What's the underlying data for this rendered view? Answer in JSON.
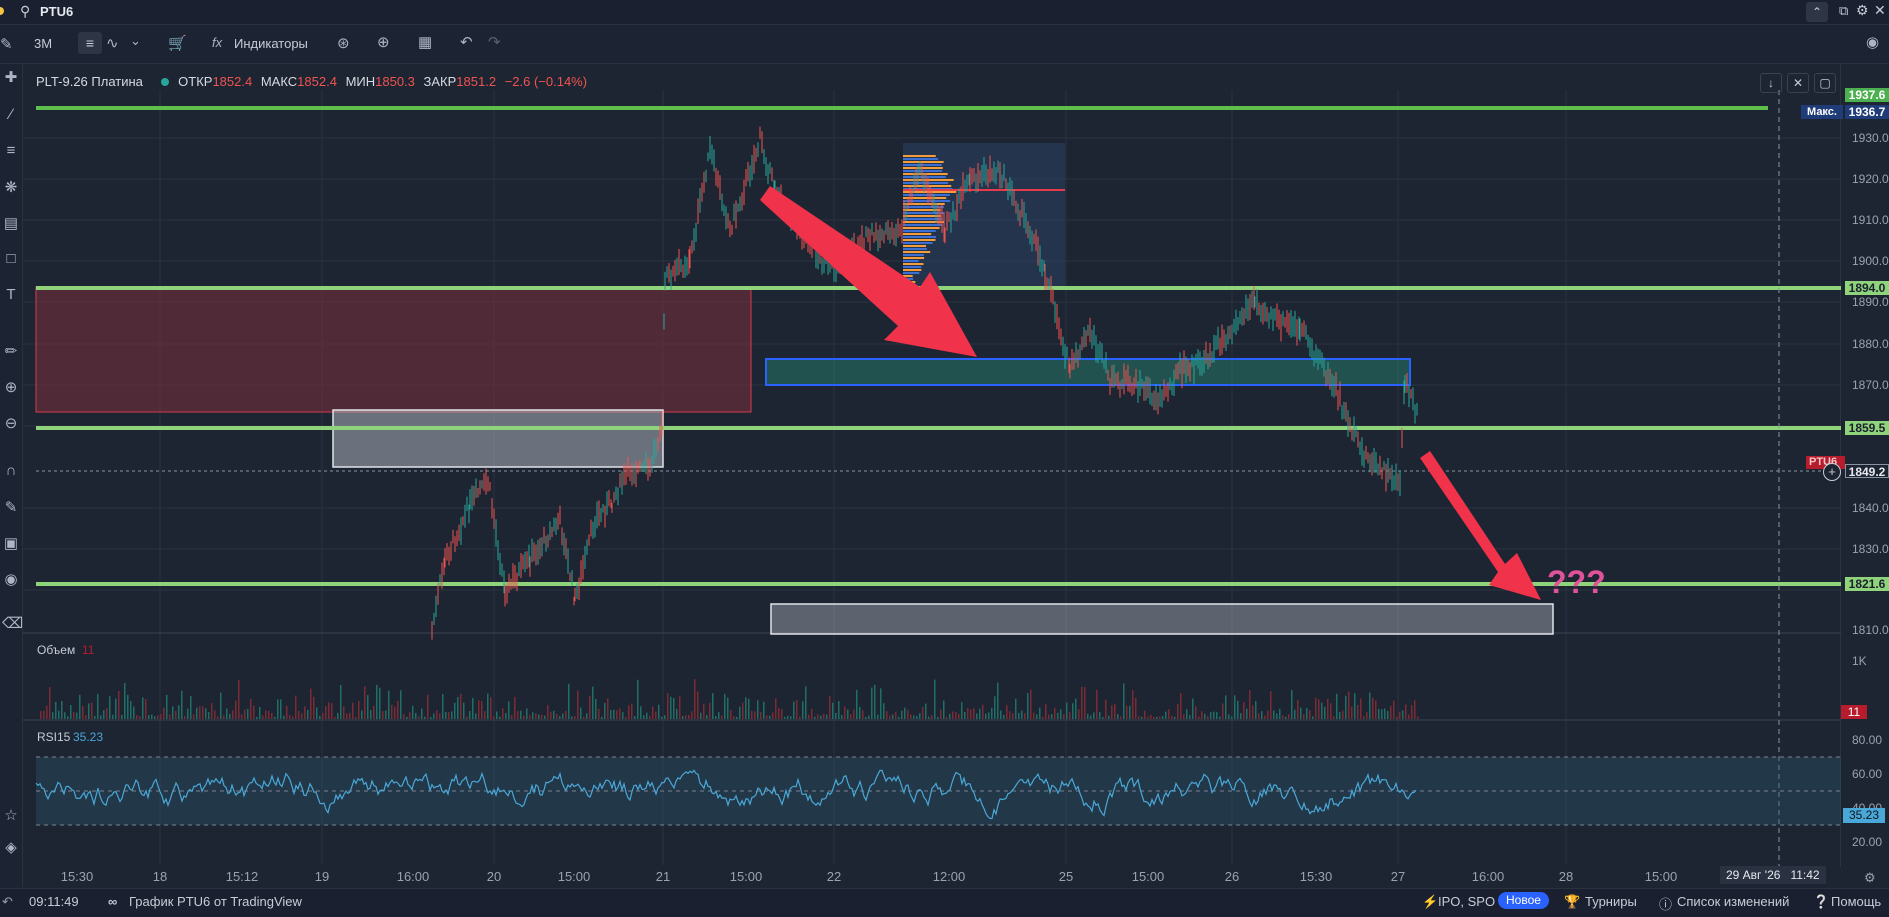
{
  "search": {
    "symbol": "PTU6"
  },
  "toolbar": {
    "timeframe": "3M",
    "indicators_label": "Индикаторы"
  },
  "legend": {
    "symbol_name": "PLT-9.26 Платина",
    "open_label": "ОТКР",
    "open_value": "1852.4",
    "high_label": "МАКС",
    "high_value": "1852.4",
    "low_label": "МИН",
    "low_value": "1850.3",
    "close_label": "ЗАКР",
    "close_value": "1851.2",
    "change": "−2.6 (−0.14%)"
  },
  "price_axis": {
    "ticks": [
      "1930.0",
      "1920.0",
      "1910.0",
      "1900.0",
      "1890.0",
      "1880.0",
      "1870.0",
      "1840.0",
      "1830.0",
      "1810.0"
    ],
    "tags": {
      "high_level": "1937.6",
      "max_label": "Макс.",
      "max_value": "1936.7",
      "level_1894": "1894.0",
      "level_1859": "1859.5",
      "current_price": "1849.2",
      "ticker_tag": "PTU6",
      "level_1821": "1821.6"
    }
  },
  "annotation": {
    "question": "???"
  },
  "volume": {
    "title": "Объем",
    "value": "11",
    "axis_tick": "1K",
    "tag": "11"
  },
  "rsi": {
    "title": "RSI15",
    "value": "35.23",
    "ticks": [
      "80.00",
      "60.00",
      "40.00",
      "20.00"
    ],
    "tag": "35.23"
  },
  "time_axis": {
    "labels": [
      "15:30",
      "18",
      "15:12",
      "19",
      "16:00",
      "20",
      "15:00",
      "21",
      "15:00",
      "22",
      "12:00",
      "25",
      "15:00",
      "26",
      "15:30",
      "27",
      "16:00",
      "28",
      "15:00"
    ],
    "cursor_date": "29 Авг '26",
    "cursor_time": "11:42"
  },
  "footer": {
    "clock": "09:11:49",
    "tradingview_link": "График PTU6 от TradingView",
    "ipo_label": "IPO, SPO",
    "new_badge": "Новое",
    "tournaments": "Турниры",
    "changelog": "Список изменений",
    "help": "Помощь"
  },
  "colors": {
    "background": "#1e2532",
    "level_line": "#8fd47a",
    "up_candle": "#26a69a",
    "down_candle": "#ef5350",
    "rsi_line": "#4aa8d8",
    "arrow": "#f0334a",
    "blue_box": "#2962ff"
  },
  "icons": [
    "search-icon",
    "candles-icon",
    "line-chart-icon",
    "cart-icon",
    "fx-icon",
    "alert-icon",
    "replay-icon",
    "layout-icon",
    "undo-icon",
    "redo-icon",
    "camera-icon",
    "crosshair-icon",
    "trend-line-icon",
    "fib-icon",
    "pattern-icon",
    "measure-icon",
    "ruler-icon",
    "zoom-in-icon",
    "zoom-out-icon",
    "magnet-icon",
    "pencil-lock-icon",
    "lock-icon",
    "eye-icon",
    "trash-icon",
    "star-icon",
    "layers-icon"
  ]
}
